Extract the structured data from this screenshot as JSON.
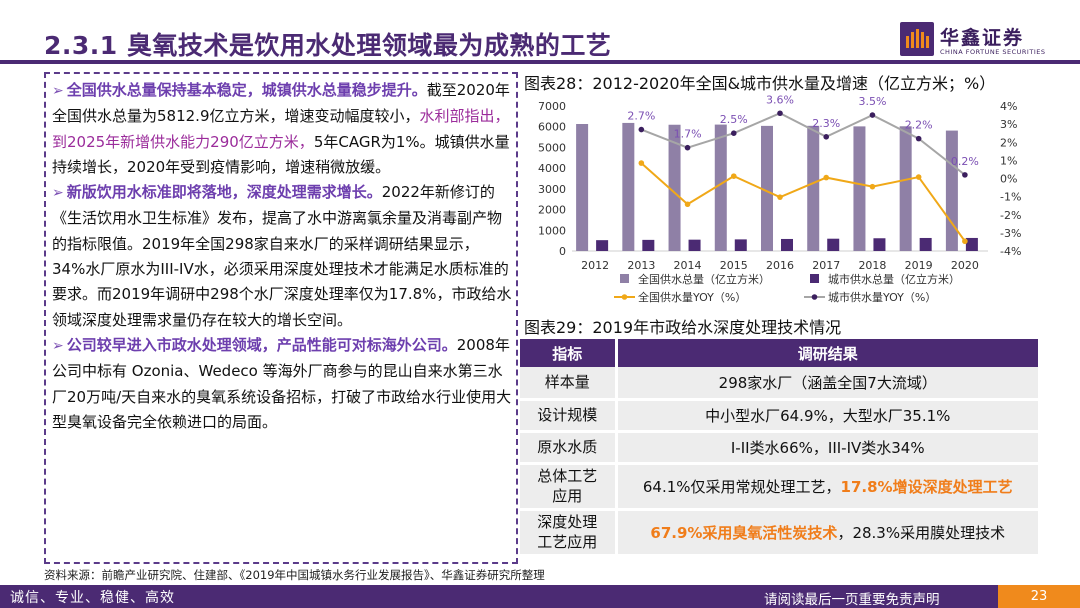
{
  "header": {
    "title": "2.3.1 臭氧技术是饮用水处理领域最为成熟的工艺",
    "logo_name": "华鑫证券",
    "logo_sub": "CHINA FORTUNE SECURITIES"
  },
  "left": {
    "b1_head": "全国供水总量保持基本稳定，城镇供水总量稳步提升。",
    "b1_t1": "截至2020年全国供水总量为5812.9亿立方米，增速变动幅度较小，",
    "b1_hl": "水利部指出，到2025年新增供水能力290亿立方米，",
    "b1_t2": "5年CAGR为1%。城镇供水量持续增长，2020年受到疫情影响，增速稍微放缓。",
    "b2_head": "新版饮用水标准即将落地，深度处理需求增长。",
    "b2_t1": "2022年新修订的《生活饮用水卫生标准》发布，提高了水中游离氯余量及消毒副产物的指标限值。2019年全国298家自来水厂的采样调研结果显示，34%水厂原水为III-IV水，必须采用深度处理技术才能满足水质标准的要求。而2019年调研中298个水厂深度处理率仅为17.8%，市政给水领域深度处理需求量仍存在较大的增长空间。",
    "b3_head": "公司较早进入市政水处理领域，产品性能可对标海外公司。",
    "b3_t1": "2008年公司中标有 Ozonia、Wedeco 等海外厂商参与的昆山自来水第三水厂20万吨/天自来水的臭氧系统设备招标，打破了市政给水行业使用大型臭氧设备完全依赖进口的局面。"
  },
  "chart_title": "图表28：2012-2020年全国&城市供水量及增速（亿立方米；%）",
  "chart_data": {
    "type": "bar",
    "title": "图表28：2012-2020年全国&城市供水量及增速（亿立方米；%）",
    "categories": [
      "2012",
      "2013",
      "2014",
      "2015",
      "2016",
      "2017",
      "2018",
      "2019",
      "2020"
    ],
    "series": [
      {
        "name": "全国供水总量（亿立方米）",
        "kind": "bar",
        "axis": "left",
        "color": "#8f80a6",
        "values": [
          6131,
          6183,
          6095,
          6103,
          6040,
          6043,
          6016,
          6021,
          5813
        ]
      },
      {
        "name": "城市供水总量（亿立方米）",
        "kind": "bar",
        "axis": "left",
        "color": "#4b2a73",
        "values": [
          523,
          537,
          547,
          561,
          581,
          594,
          615,
          629,
          630
        ]
      },
      {
        "name": "全国供水量YOY（%）",
        "kind": "line",
        "axis": "right",
        "color": "#f0a818",
        "values": [
          null,
          0.85,
          -1.42,
          0.13,
          -1.03,
          0.05,
          -0.45,
          0.08,
          -3.46
        ]
      },
      {
        "name": "城市供水量YOY（%）",
        "kind": "line",
        "axis": "right",
        "color": "#a6a6a6",
        "values": [
          null,
          2.7,
          1.7,
          2.5,
          3.6,
          2.3,
          3.5,
          2.2,
          0.2
        ]
      }
    ],
    "data_labels": [
      "2.7%",
      "1.7%",
      "2.5%",
      "3.6%",
      "2.3%",
      "3.5%",
      "2.2%",
      "0.2%"
    ],
    "ylim_left": [
      0,
      7000
    ],
    "ylim_right": [
      -4,
      4
    ],
    "yticks_left": [
      "7000",
      "6000",
      "5000",
      "4000",
      "3000",
      "2000",
      "1000",
      "0"
    ],
    "yticks_right": [
      "4%",
      "3%",
      "2%",
      "1%",
      "0%",
      "-1%",
      "-2%",
      "-3%",
      "-4%"
    ],
    "legend_position": "bottom"
  },
  "table": {
    "title": "图表29：2019年市政给水深度处理技术情况",
    "header": [
      "指标",
      "调研结果"
    ],
    "r1": {
      "k": "样本量",
      "v": "298家水厂（涵盖全国7大流域）"
    },
    "r2": {
      "k": "设计规模",
      "v": "中小型水厂64.9%，大型水厂35.1%"
    },
    "r3": {
      "k": "原水水质",
      "v": "I-II类水66%，III-IV类水34%"
    },
    "r4": {
      "k1": "总体工艺",
      "k2": "应用",
      "v1": "64.1%仅采用常规处理工艺，",
      "v2": "17.8%增设深度处理工艺"
    },
    "r5": {
      "k1": "深度处理",
      "k2": "工艺应用",
      "v1": "67.9%采用臭氧活性炭技术",
      "v2": "，28.3%采用膜处理技术"
    }
  },
  "source": "资料来源：前瞻产业研究院、住建部、《2019年中国城镇水务行业发展报告》、华鑫证券研究所整理",
  "footer": {
    "left": "诚信、专业、稳健、高效",
    "right": "请阅读最后一页重要免责声明",
    "page": "23"
  }
}
